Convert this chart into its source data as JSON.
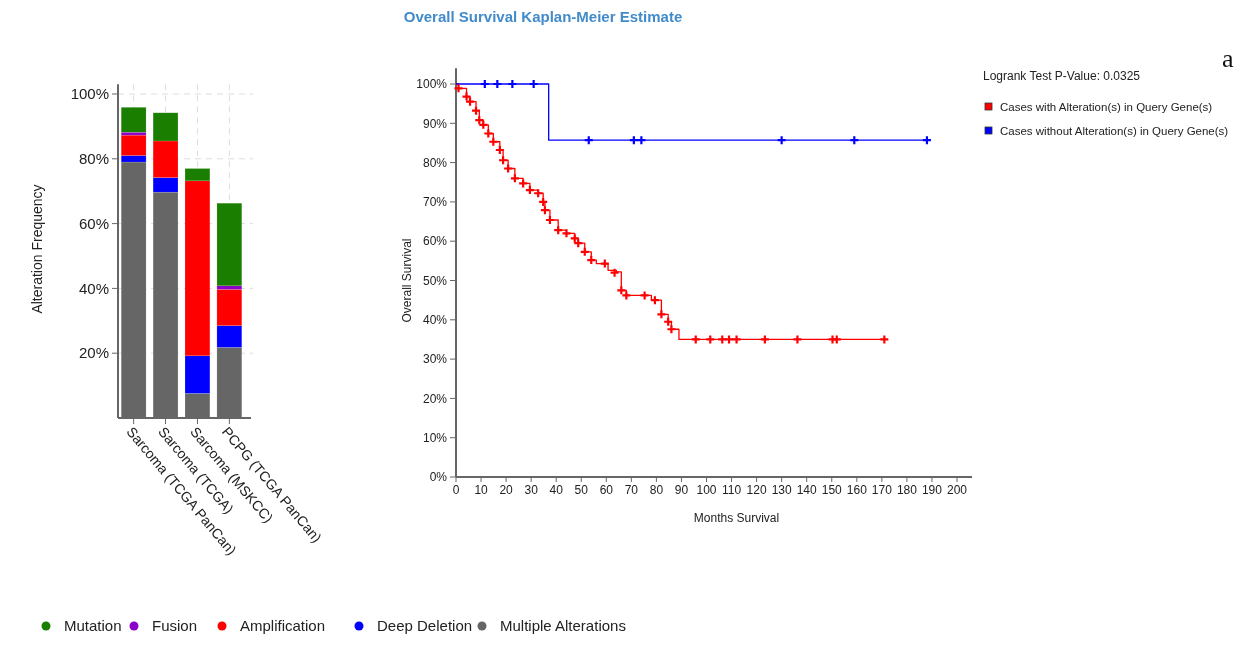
{
  "chart_data": [
    {
      "type": "bar",
      "stacked": true,
      "ylabel": "Alteration Frequency",
      "categories": [
        "Sarcoma (TCGA PanCan)",
        "Sarcoma (TCGA)",
        "Sarcoma (MSKCC)",
        "PCPG (TCGA PanCan)"
      ],
      "series": [
        {
          "name": "Multiple Alterations",
          "color": "#666666",
          "values": [
            79,
            69.7,
            7.6,
            21.8
          ]
        },
        {
          "name": "Deep Deletion",
          "color": "#0000ff",
          "values": [
            2,
            4.5,
            11.6,
            6.7
          ]
        },
        {
          "name": "Amplification",
          "color": "#ff0000",
          "values": [
            6.3,
            11.3,
            54,
            11.2
          ]
        },
        {
          "name": "Fusion",
          "color": "#8b00c9",
          "values": [
            0.9,
            0,
            0,
            1.1
          ]
        },
        {
          "name": "Mutation",
          "color": "#1a7f00",
          "values": [
            7.7,
            8.7,
            3.8,
            25.5
          ]
        }
      ],
      "ylim": [
        0,
        103
      ],
      "yticks": [
        {
          "value": 20,
          "label": "20%"
        },
        {
          "value": 40,
          "label": "40%"
        },
        {
          "value": 60,
          "label": "60%"
        },
        {
          "value": 80,
          "label": "80%"
        },
        {
          "value": 100,
          "label": "100%"
        }
      ],
      "grid": true,
      "legend": "bottom"
    },
    {
      "type": "step",
      "title": "Overall Survival Kaplan-Meier Estimate",
      "xlabel": "Months Survival",
      "ylabel": "Overall Survival",
      "annotations": [
        "Logrank Test P-Value: 0.0325",
        "a"
      ],
      "series": [
        {
          "name": "Cases with Alteration(s) in Query Gene(s)",
          "color": "#ff0000",
          "marker": "none",
          "x": [
            0,
            1,
            4.2,
            5.6,
            8,
            9.3,
            10.9,
            12.9,
            14.9,
            17.5,
            18.8,
            20.8,
            23.5,
            26.8,
            29.5,
            32.8,
            34.8,
            35.5,
            37.5,
            40.8,
            44.1,
            47.4,
            48.8,
            51.4,
            54,
            56,
            60.7,
            64,
            66,
            68,
            78,
            82,
            84.7,
            86,
            89,
            171
          ],
          "values": [
            100,
            98.9,
            96.8,
            95.5,
            93.2,
            90.8,
            89.6,
            87.4,
            85.3,
            83.2,
            80.6,
            78.5,
            76,
            74.7,
            73,
            72.2,
            70,
            67.9,
            65.4,
            62.8,
            62,
            60.7,
            59.5,
            57.3,
            55.2,
            54.3,
            52.6,
            52.2,
            47.5,
            46.2,
            45,
            41.4,
            39.5,
            37.6,
            35,
            35
          ]
        },
        {
          "name": "Cases without Alteration(s) in Query Gene(s)",
          "color": "#0000ff",
          "marker": "none",
          "x": [
            0,
            37,
            188
          ],
          "values": [
            100,
            85.7,
            85.7
          ]
        },
        {
          "type": "scatter",
          "color": "#ff0000",
          "marker": "cross",
          "x": [
            1,
            4.2,
            5.6,
            8,
            9.3,
            10.9,
            12.9,
            14.9,
            17.5,
            18.8,
            20.8,
            23.5,
            26.8,
            29.5,
            32.8,
            34.8,
            35.5,
            37.5,
            40.8,
            44.1,
            47.4,
            48.8,
            51.4,
            54,
            59.4,
            63.3,
            66,
            68,
            75.3,
            79.4,
            82,
            84.7,
            86,
            95.7,
            101.5,
            106.3,
            109,
            112,
            123.3,
            136.3,
            150.3,
            152,
            171
          ],
          "values": [
            98.9,
            96.8,
            95.5,
            93.2,
            90.8,
            89.6,
            87.4,
            85.3,
            83.2,
            80.6,
            78.5,
            76,
            74.7,
            73,
            72.2,
            70,
            67.9,
            65.4,
            62.8,
            62,
            60.7,
            59.5,
            57.3,
            55.2,
            54.3,
            52,
            47.5,
            46.2,
            46.2,
            45,
            41.4,
            39.5,
            37.6,
            35,
            35,
            35,
            35,
            35,
            35,
            35,
            35,
            35,
            35
          ]
        },
        {
          "type": "scatter",
          "color": "#0000ff",
          "marker": "cross",
          "x": [
            11.5,
            16.5,
            22.5,
            31,
            53,
            71,
            74,
            130,
            159,
            188
          ],
          "values": [
            100,
            100,
            100,
            100,
            85.7,
            85.7,
            85.7,
            85.7,
            85.7,
            85.7
          ]
        }
      ],
      "xlim": [
        0,
        206
      ],
      "xticks": [
        0,
        10,
        20,
        30,
        40,
        50,
        60,
        70,
        80,
        90,
        100,
        110,
        120,
        130,
        140,
        150,
        160,
        170,
        180,
        190,
        200
      ],
      "ylim": [
        0,
        104
      ],
      "yticks": [
        {
          "value": 0,
          "label": "0%"
        },
        {
          "value": 10,
          "label": "10%"
        },
        {
          "value": 20,
          "label": "20%"
        },
        {
          "value": 30,
          "label": "30%"
        },
        {
          "value": 40,
          "label": "40%"
        },
        {
          "value": 50,
          "label": "50%"
        },
        {
          "value": 60,
          "label": "60%"
        },
        {
          "value": 70,
          "label": "70%"
        },
        {
          "value": 80,
          "label": "80%"
        },
        {
          "value": 90,
          "label": "90%"
        },
        {
          "value": 100,
          "label": "100%"
        }
      ],
      "legend": "top right"
    }
  ]
}
